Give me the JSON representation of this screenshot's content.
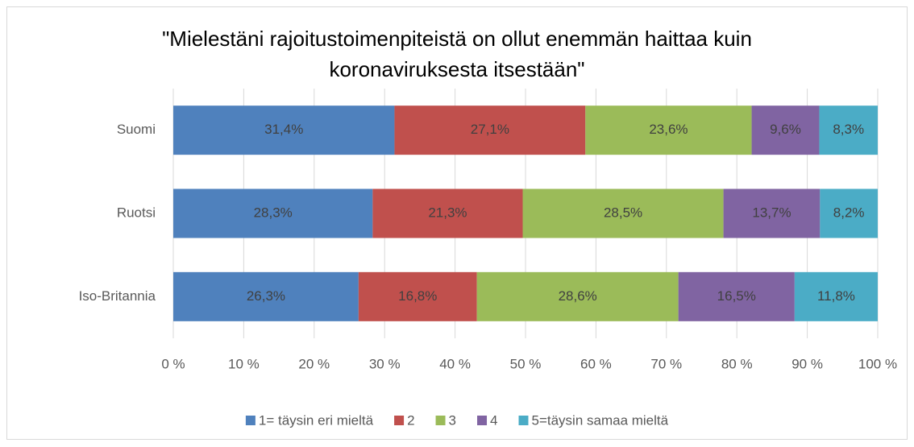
{
  "chart_data": {
    "type": "stacked_bar_horizontal",
    "title": [
      "\"Mielestäni rajoitustoimenpiteistä on ollut enemmän haittaa kuin",
      "koronaviruksesta itsestään\""
    ],
    "categories": [
      "Suomi",
      "Ruotsi",
      "Iso-Britannia"
    ],
    "series": [
      {
        "name": "1= täysin eri mieltä",
        "color": "#4f81bd",
        "values": [
          31.4,
          28.3,
          26.3
        ],
        "value_labels": [
          "31,4%",
          "28,3%",
          "26,3%"
        ]
      },
      {
        "name": "2",
        "color": "#c0504d",
        "values": [
          27.1,
          21.3,
          16.8
        ],
        "value_labels": [
          "27,1%",
          "21,3%",
          "16,8%"
        ]
      },
      {
        "name": "3",
        "color": "#9bbb59",
        "values": [
          23.6,
          28.5,
          28.6
        ],
        "value_labels": [
          "23,6%",
          "28,5%",
          "28,6%"
        ]
      },
      {
        "name": "4",
        "color": "#8064a2",
        "values": [
          9.6,
          13.7,
          16.5
        ],
        "value_labels": [
          "9,6%",
          "13,7%",
          "16,5%"
        ]
      },
      {
        "name": "5=täysin samaa mieltä",
        "color": "#4bacc6",
        "values": [
          8.3,
          8.2,
          11.8
        ],
        "value_labels": [
          "8,3%",
          "8,2%",
          "11,8%"
        ]
      }
    ],
    "xlim": [
      0,
      100
    ],
    "xticks": [
      {
        "value": 0,
        "label": "0 %"
      },
      {
        "value": 10,
        "label": "10 %"
      },
      {
        "value": 20,
        "label": "20 %"
      },
      {
        "value": 30,
        "label": "30 %"
      },
      {
        "value": 40,
        "label": "40 %"
      },
      {
        "value": 50,
        "label": "50 %"
      },
      {
        "value": 60,
        "label": "60 %"
      },
      {
        "value": 70,
        "label": "70 %"
      },
      {
        "value": 80,
        "label": "80 %"
      },
      {
        "value": 90,
        "label": "90 %"
      },
      {
        "value": 100,
        "label": "100 %"
      }
    ],
    "grid": true,
    "legend": "bottom"
  }
}
